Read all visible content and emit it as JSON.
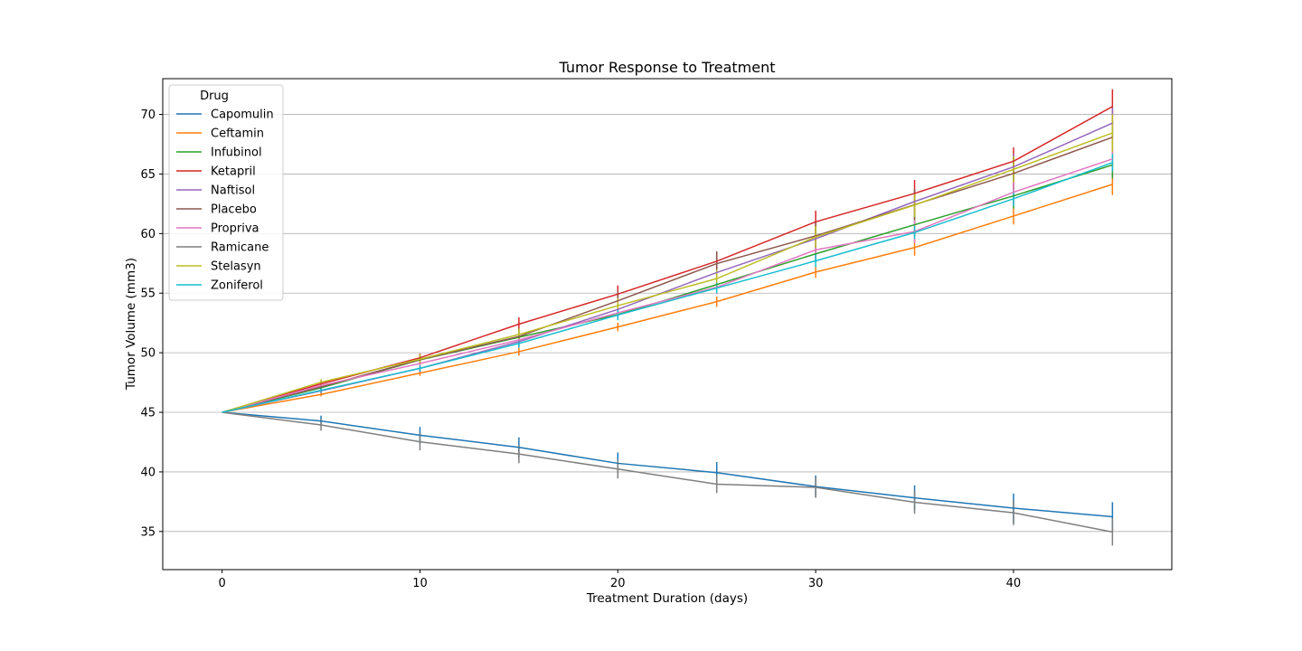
{
  "chart_data": {
    "type": "line",
    "title": "Tumor Response to Treatment",
    "xlabel": "Treatment Duration (days)",
    "ylabel": "Tumor Volume (mm3)",
    "xlim": [
      -3,
      48
    ],
    "ylim": [
      31.8,
      73
    ],
    "xticks": [
      0,
      10,
      20,
      30,
      40
    ],
    "yticks": [
      35,
      40,
      45,
      50,
      55,
      60,
      65,
      70
    ],
    "grid": "horizontal",
    "legend": {
      "title": "Drug",
      "placement": "top-left"
    },
    "x": [
      0,
      5,
      10,
      15,
      20,
      25,
      30,
      35,
      40,
      45
    ],
    "series": [
      {
        "name": "Capomulin",
        "color": "#1f77b4",
        "values": [
          45.0,
          44.27,
          43.08,
          42.06,
          40.72,
          39.94,
          38.77,
          37.82,
          36.96,
          36.24
        ],
        "error": [
          0,
          0.45,
          0.7,
          0.84,
          0.91,
          0.89,
          0.93,
          1.05,
          1.22,
          1.22
        ]
      },
      {
        "name": "Ceftamin",
        "color": "#ff7f0e",
        "values": [
          45.0,
          46.5,
          48.29,
          50.09,
          52.16,
          54.29,
          56.77,
          58.83,
          61.47,
          64.13
        ],
        "error": [
          0,
          0.16,
          0.24,
          0.33,
          0.36,
          0.44,
          0.49,
          0.69,
          0.71,
          0.9
        ]
      },
      {
        "name": "Infubinol",
        "color": "#2ca02c",
        "values": [
          45.0,
          47.06,
          49.4,
          51.3,
          53.2,
          55.72,
          58.3,
          60.74,
          63.16,
          65.76
        ],
        "error": [
          0,
          0.24,
          0.28,
          0.36,
          0.44,
          0.55,
          0.63,
          0.98,
          1.06,
          1.14
        ]
      },
      {
        "name": "Ketapril",
        "color": "#d62728",
        "values": [
          45.0,
          47.39,
          49.58,
          52.4,
          54.92,
          57.68,
          60.99,
          63.37,
          66.07,
          70.66
        ],
        "error": [
          0,
          0.26,
          0.36,
          0.58,
          0.73,
          0.76,
          0.93,
          1.13,
          1.16,
          1.45
        ]
      },
      {
        "name": "Naftisol",
        "color": "#9467bd",
        "values": [
          45.0,
          46.8,
          48.69,
          50.93,
          53.64,
          56.73,
          59.56,
          62.69,
          65.6,
          69.27
        ],
        "error": [
          0,
          0.2,
          0.33,
          0.44,
          0.56,
          0.63,
          0.76,
          0.92,
          1.06,
          1.32
        ]
      },
      {
        "name": "Placebo",
        "color": "#8c564b",
        "values": [
          45.0,
          47.13,
          49.42,
          51.36,
          54.36,
          57.48,
          59.81,
          62.42,
          65.05,
          68.08
        ],
        "error": [
          0,
          0.22,
          0.4,
          0.61,
          0.84,
          1.03,
          1.22,
          1.29,
          1.37,
          1.35
        ]
      },
      {
        "name": "Propriva",
        "color": "#e377c2",
        "values": [
          45.0,
          47.25,
          49.1,
          51.07,
          53.35,
          55.5,
          58.63,
          60.17,
          63.47,
          66.26
        ],
        "error": [
          0,
          0.23,
          0.38,
          0.47,
          0.52,
          0.58,
          0.73,
          0.97,
          0.98,
          1.02
        ]
      },
      {
        "name": "Ramicane",
        "color": "#7f7f7f",
        "values": [
          45.0,
          43.94,
          42.53,
          41.5,
          40.24,
          38.97,
          38.7,
          37.45,
          36.57,
          34.96
        ],
        "error": [
          0,
          0.48,
          0.72,
          0.77,
          0.79,
          0.75,
          0.86,
          0.97,
          1.04,
          1.14
        ]
      },
      {
        "name": "Stelasyn",
        "color": "#bcbd22",
        "values": [
          45.0,
          47.53,
          49.46,
          51.53,
          53.95,
          56.22,
          59.72,
          62.39,
          65.39,
          68.44
        ],
        "error": [
          0,
          0.24,
          0.43,
          0.49,
          0.62,
          0.74,
          0.9,
          1.0,
          1.1,
          1.57
        ]
      },
      {
        "name": "Zoniferol",
        "color": "#17becf",
        "values": [
          45.0,
          46.85,
          48.69,
          50.78,
          53.17,
          55.43,
          57.71,
          60.09,
          62.92,
          65.96
        ],
        "error": [
          0,
          0.19,
          0.26,
          0.36,
          0.44,
          0.44,
          0.53,
          0.55,
          0.63,
          0.73
        ]
      }
    ]
  }
}
